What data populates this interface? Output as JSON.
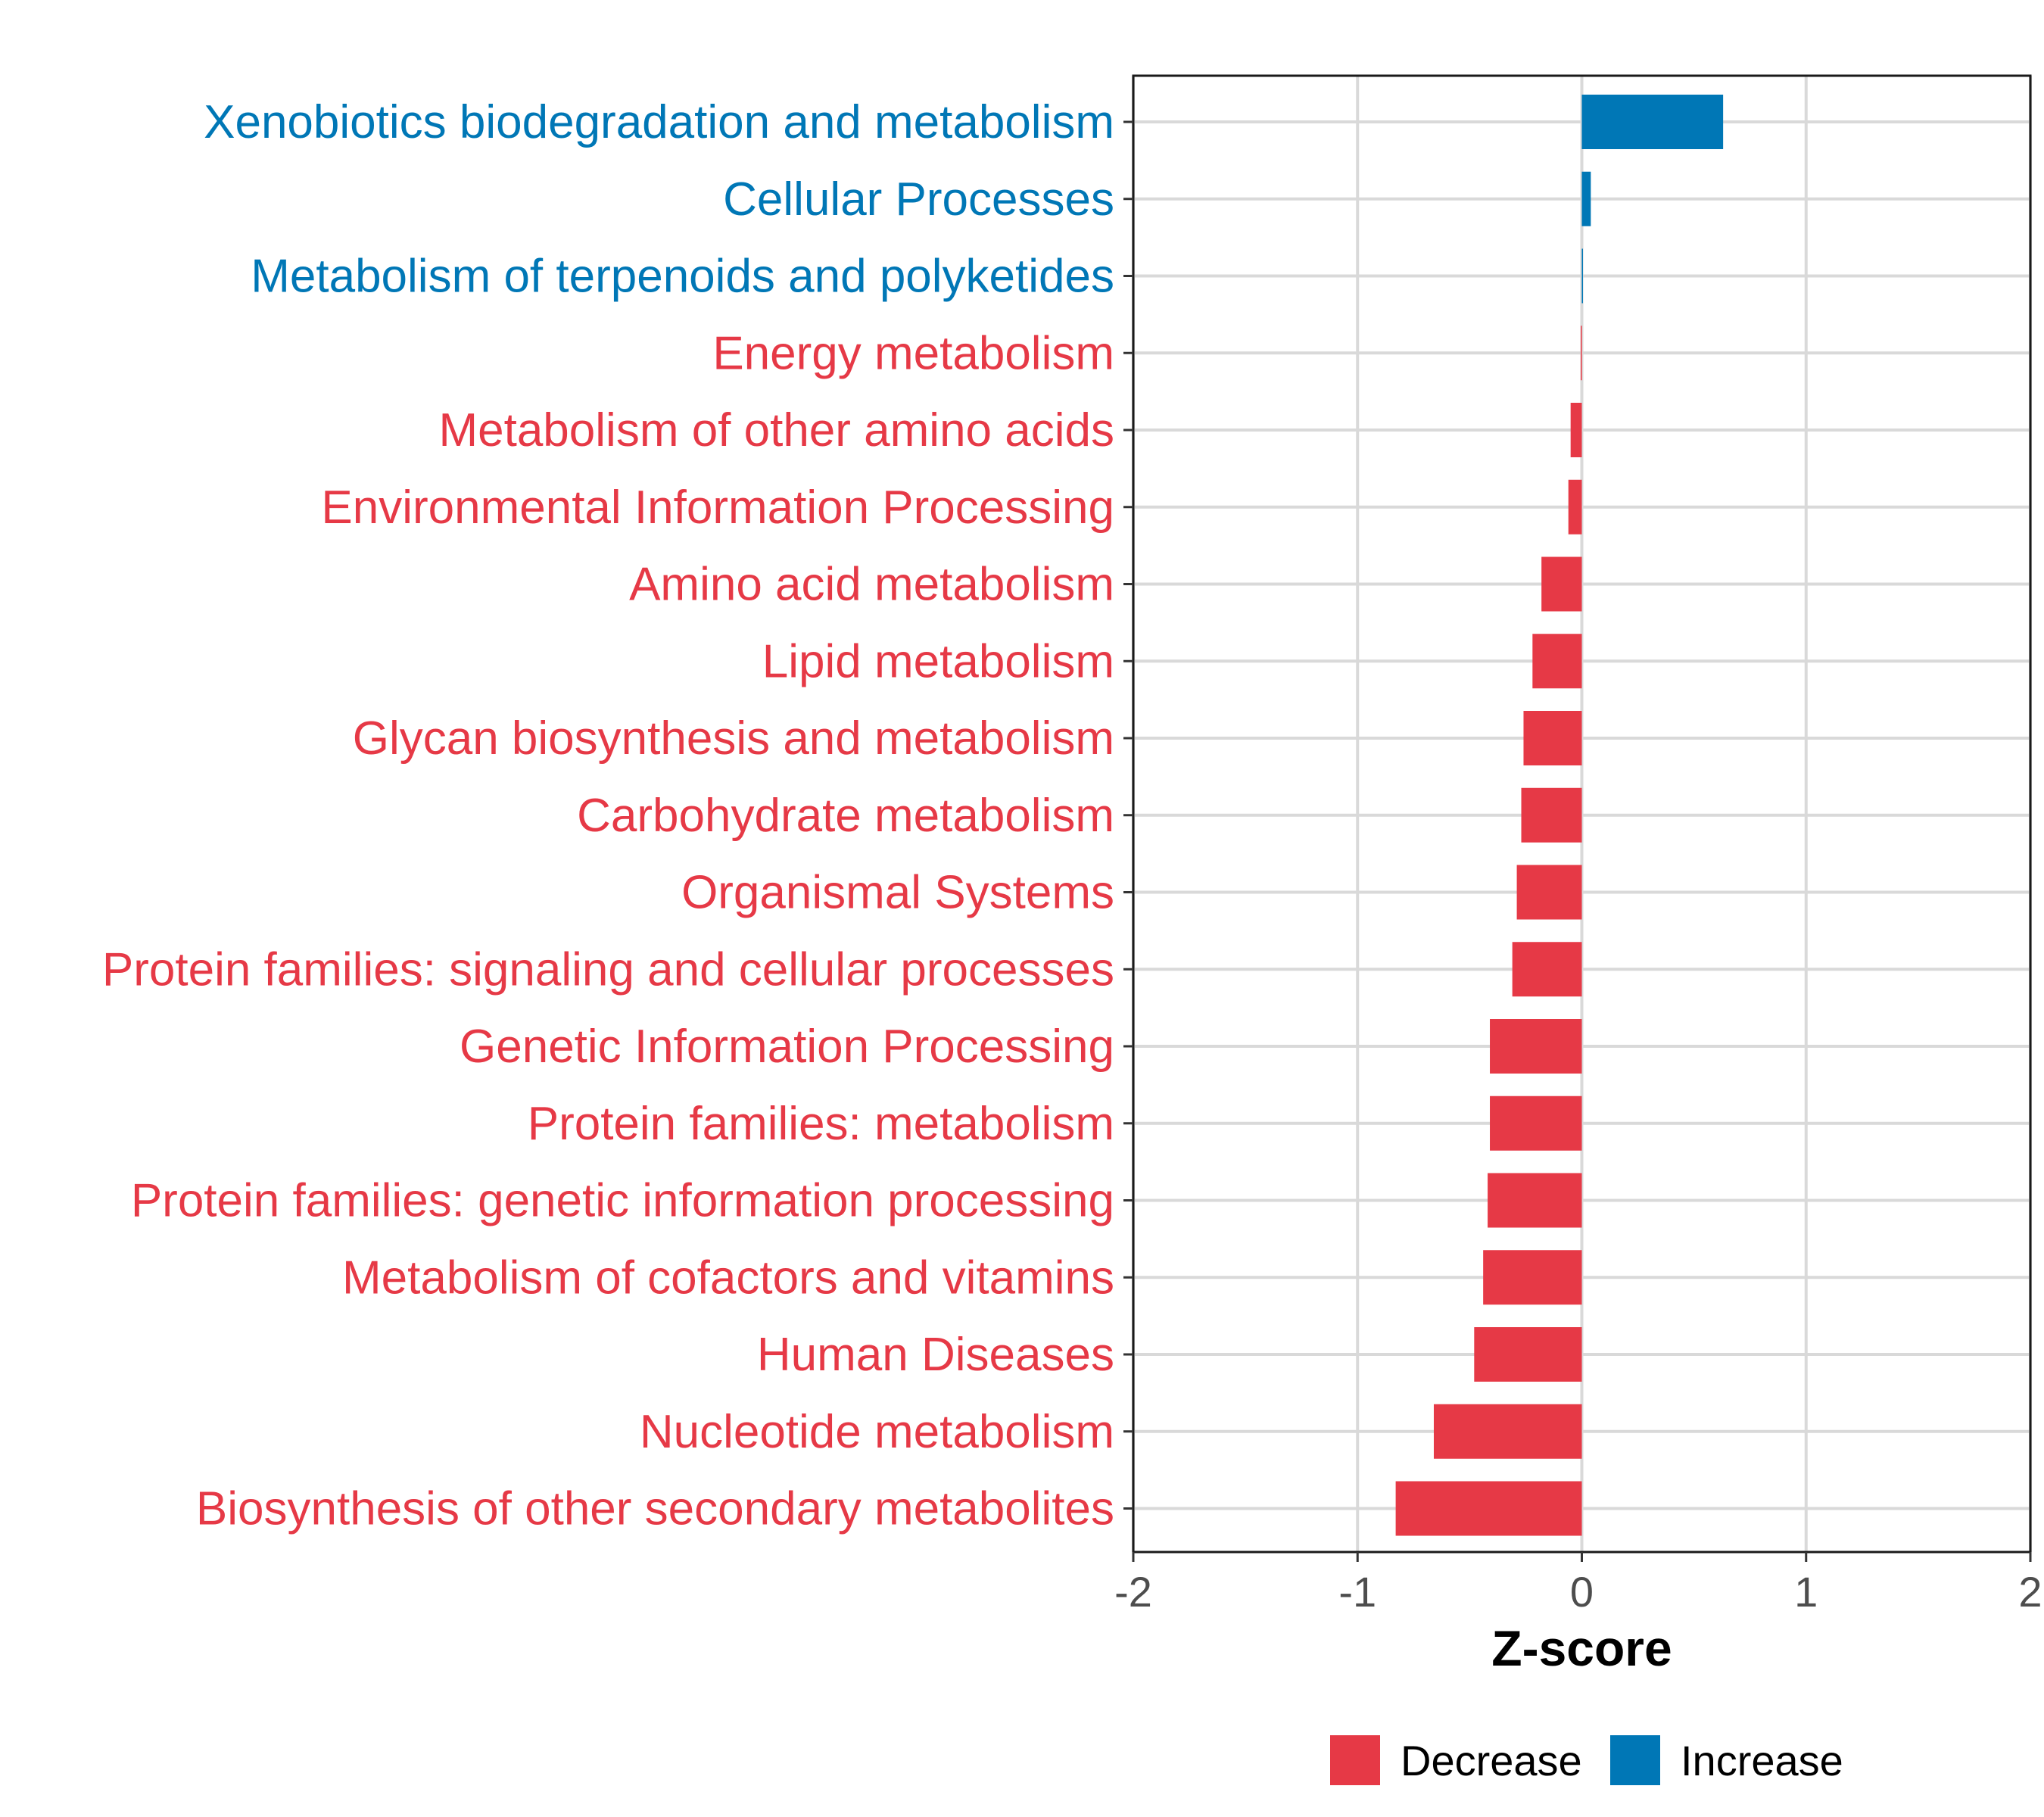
{
  "chart_data": {
    "type": "bar",
    "orientation": "horizontal",
    "title": "",
    "xlabel": "Z-score",
    "ylabel": "",
    "xlim": [
      -2,
      2
    ],
    "x_ticks": [
      -2,
      -1,
      0,
      1,
      2
    ],
    "x_tick_labels": [
      "-2",
      "-1",
      "0",
      "1",
      "2"
    ],
    "grid": true,
    "legend_position": "bottom",
    "legend": [
      {
        "name": "Decrease",
        "color": "#E63946"
      },
      {
        "name": "Increase",
        "color": "#0077B6"
      }
    ],
    "categories": [
      "Xenobiotics biodegradation and metabolism",
      "Cellular Processes",
      "Metabolism of terpenoids and polyketides",
      "Energy metabolism",
      "Metabolism of other amino acids",
      "Environmental Information Processing",
      "Amino acid metabolism",
      "Lipid metabolism",
      "Glycan biosynthesis and metabolism",
      "Carbohydrate metabolism",
      "Organismal Systems",
      "Protein families: signaling and cellular processes",
      "Genetic Information Processing",
      "Protein families: metabolism",
      "Protein families: genetic information processing",
      "Metabolism of cofactors and vitamins",
      "Human Diseases",
      "Nucleotide metabolism",
      "Biosynthesis of other secondary metabolites"
    ],
    "values": [
      0.63,
      0.04,
      0.005,
      -0.005,
      -0.05,
      -0.06,
      -0.18,
      -0.22,
      -0.26,
      -0.27,
      -0.29,
      -0.31,
      -0.41,
      -0.41,
      -0.42,
      -0.44,
      -0.48,
      -0.66,
      -0.83
    ],
    "groups": [
      "Increase",
      "Increase",
      "Increase",
      "Decrease",
      "Decrease",
      "Decrease",
      "Decrease",
      "Decrease",
      "Decrease",
      "Decrease",
      "Decrease",
      "Decrease",
      "Decrease",
      "Decrease",
      "Decrease",
      "Decrease",
      "Decrease",
      "Decrease",
      "Decrease"
    ]
  }
}
